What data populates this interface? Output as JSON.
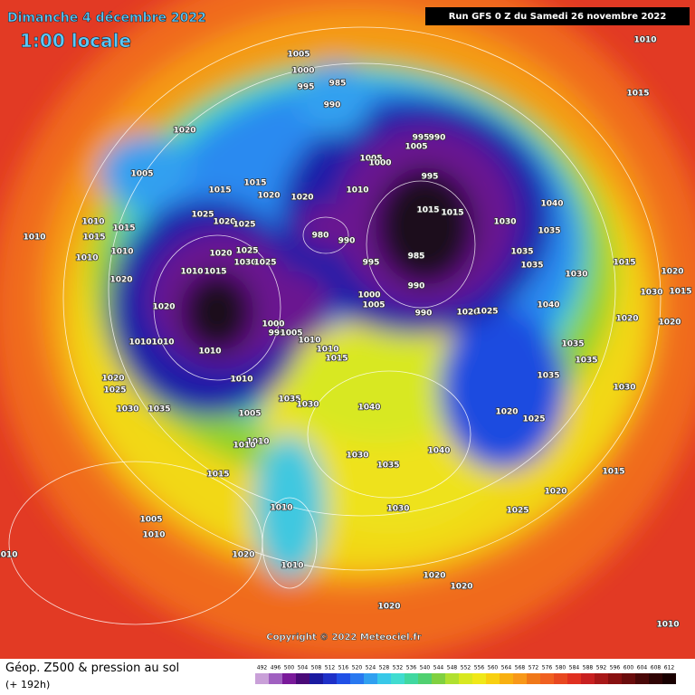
{
  "header": {
    "date": "Dimanche 4 décembre 2022",
    "time": "1:00 locale",
    "run": "Run GFS 0 Z du Samedi 26 novembre 2022"
  },
  "copyright": "Copyright © 2022 Meteociel.fr",
  "legend": {
    "title": "Géop. Z500 & pression au sol",
    "lead": "(+ 192h)",
    "ticks": [
      492,
      496,
      500,
      504,
      508,
      512,
      516,
      520,
      524,
      528,
      532,
      536,
      540,
      544,
      548,
      552,
      556,
      560,
      564,
      568,
      572,
      576,
      580,
      584,
      588,
      592,
      596,
      600,
      604,
      608,
      612
    ],
    "colors": [
      "#c9a0d8",
      "#a060c0",
      "#7a1a9a",
      "#4a0a78",
      "#1a1aa0",
      "#1e30c8",
      "#2050e6",
      "#2878f0",
      "#30a0f0",
      "#38c8e8",
      "#40dcd0",
      "#40d8a0",
      "#50d070",
      "#80d040",
      "#b0e030",
      "#d8e820",
      "#f0e818",
      "#f8d010",
      "#f8b010",
      "#f89818",
      "#f07818",
      "#f06020",
      "#e84820",
      "#e03020",
      "#c82020",
      "#a81818",
      "#881010",
      "#6a0c0c",
      "#4a0808",
      "#300404",
      "#180000"
    ]
  },
  "isobar_labels": [
    1005,
    1000,
    995,
    985,
    990,
    1010,
    1015,
    1020,
    1005,
    1015,
    1015,
    1020,
    1020,
    1010,
    1005,
    1000,
    995,
    1005,
    990,
    995,
    1015,
    1015,
    1030,
    1040,
    1035,
    1035,
    1035,
    1030,
    980,
    990,
    995,
    985,
    990,
    1000,
    1005,
    990,
    1020,
    1025,
    1040,
    1035,
    1035,
    1035,
    1020,
    1025,
    1020,
    1015,
    1020,
    1030,
    1015,
    1020,
    1010,
    1015,
    1010,
    1015,
    1010,
    1010,
    1020,
    1025,
    1020,
    1025,
    1020,
    1010,
    1015,
    1025,
    1030,
    1025,
    1020,
    1010,
    1010,
    1010,
    1000,
    995,
    1010,
    1005,
    1010,
    1015,
    1010,
    1020,
    1025,
    1030,
    1035,
    1035,
    1030,
    1040,
    1030,
    1035,
    1040,
    1005,
    1010,
    1010,
    1015,
    1020,
    1015,
    1025,
    1030,
    1010,
    1005,
    1010,
    1010,
    1020,
    1010,
    1020,
    1020,
    1020,
    1010,
    1030
  ]
}
